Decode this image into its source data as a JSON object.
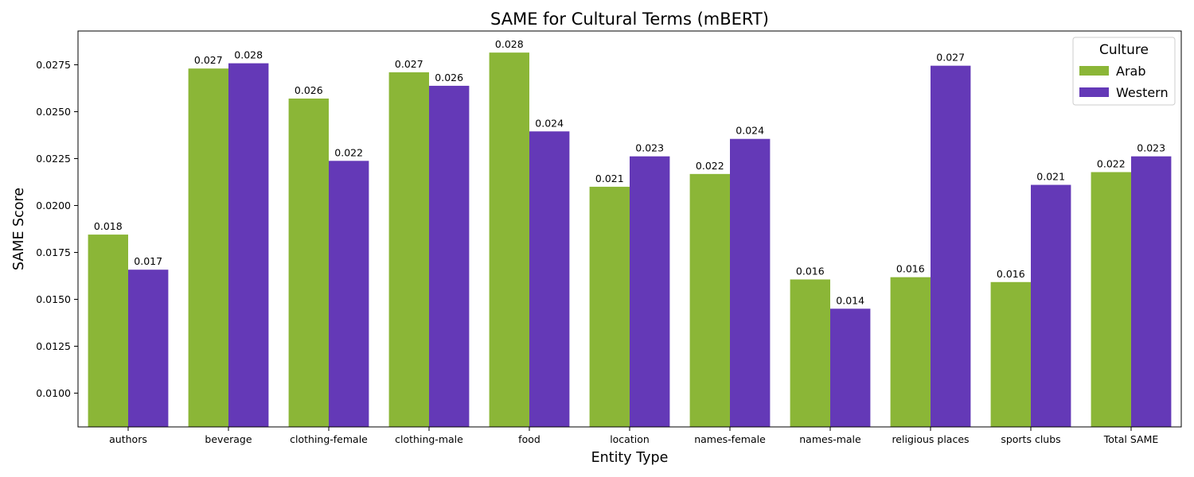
{
  "chart_data": {
    "type": "bar",
    "title": "SAME for Cultural Terms (mBERT)",
    "xlabel": "Entity Type",
    "ylabel": "SAME Score",
    "ylim": [
      0.0082,
      0.0293
    ],
    "yticks": [
      0.01,
      0.0125,
      0.015,
      0.0175,
      0.02,
      0.0225,
      0.025,
      0.0275
    ],
    "ytick_labels": [
      "0.0100",
      "0.0125",
      "0.0150",
      "0.0175",
      "0.0200",
      "0.0225",
      "0.0250",
      "0.0275"
    ],
    "grid": false,
    "legend": {
      "title": "Culture",
      "position": "top-right"
    },
    "categories": [
      "authors",
      "beverage",
      "clothing-female",
      "clothing-male",
      "food",
      "location",
      "names-female",
      "names-male",
      "religious places",
      "sports clubs",
      "Total SAME"
    ],
    "series": [
      {
        "name": "Arab",
        "color": "#8bb637",
        "values": [
          0.01845,
          0.0273,
          0.0257,
          0.0271,
          0.02815,
          0.021,
          0.02168,
          0.01606,
          0.01618,
          0.01592,
          0.02178
        ],
        "labels": [
          "0.018",
          "0.027",
          "0.026",
          "0.027",
          "0.028",
          "0.021",
          "0.022",
          "0.016",
          "0.016",
          "0.016",
          "0.022"
        ]
      },
      {
        "name": "Western",
        "color": "#6439b7",
        "values": [
          0.01658,
          0.02758,
          0.02238,
          0.02638,
          0.02395,
          0.02262,
          0.02355,
          0.0145,
          0.02745,
          0.0211,
          0.02262
        ],
        "labels": [
          "0.017",
          "0.028",
          "0.022",
          "0.026",
          "0.024",
          "0.023",
          "0.024",
          "0.014",
          "0.027",
          "0.021",
          "0.023"
        ]
      }
    ]
  }
}
